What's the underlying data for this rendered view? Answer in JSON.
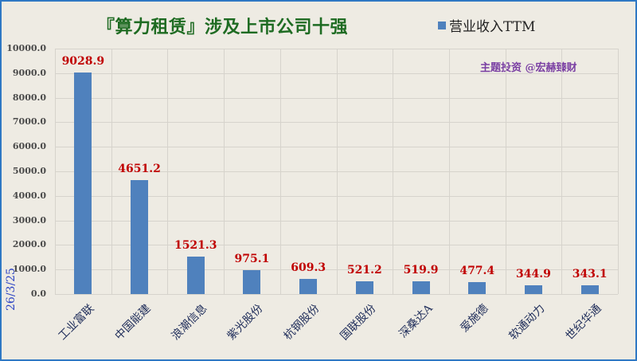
{
  "title": "『算力租赁』涉及上市公司十强",
  "legend": {
    "label": "营业收入TTM",
    "color": "#4f81bd"
  },
  "watermark": "主题投资 @宏赫臻财",
  "date": "26/3/25",
  "y_ticks": [
    "10000.0",
    "9000.0",
    "8000.0",
    "7000.0",
    "6000.0",
    "5000.0",
    "4000.0",
    "3000.0",
    "2000.0",
    "1000.0",
    "0.0"
  ],
  "chart_data": {
    "type": "bar",
    "title": "『算力租赁』涉及上市公司十强",
    "xlabel": "",
    "ylabel": "",
    "ylim": [
      0,
      10000
    ],
    "grid": true,
    "legend_position": "top-right",
    "categories": [
      "工业富联",
      "中国能建",
      "浪潮信息",
      "紫光股份",
      "杭钢股份",
      "国联股份",
      "深桑达A",
      "爱施德",
      "软通动力",
      "世纪华通"
    ],
    "series": [
      {
        "name": "营业收入TTM",
        "values": [
          9028.9,
          4651.2,
          1521.3,
          975.1,
          609.3,
          521.2,
          519.9,
          477.4,
          344.9,
          343.1
        ]
      }
    ],
    "data_labels": [
      "9028.9",
      "4651.2",
      "1521.3",
      "975.1",
      "609.3",
      "521.2",
      "519.9",
      "477.4",
      "344.9",
      "343.1"
    ],
    "annotations": [
      "主题投资 @宏赫臻财",
      "26/3/25"
    ]
  }
}
